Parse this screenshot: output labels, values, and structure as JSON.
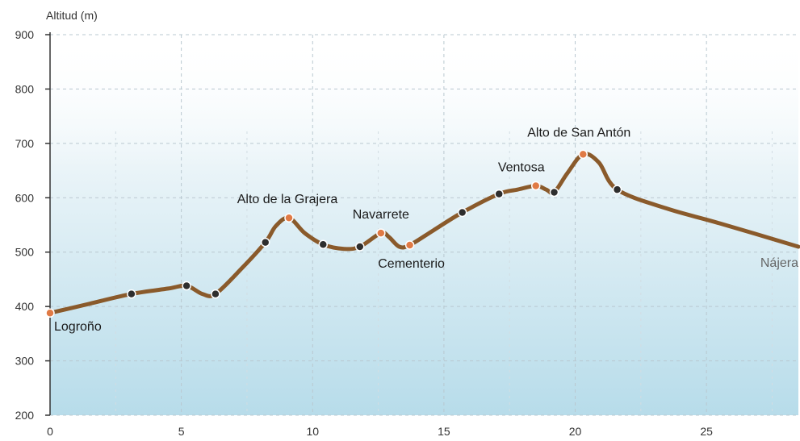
{
  "chart_data": {
    "type": "area",
    "ylabel": "Altitud (m)",
    "xlabel": "",
    "title": "",
    "xlim": [
      0,
      28.5
    ],
    "ylim": [
      200,
      900
    ],
    "y_ticks": [
      200,
      300,
      400,
      500,
      600,
      700,
      800,
      900
    ],
    "x_ticks": [
      0,
      5,
      10,
      15,
      20,
      25
    ],
    "grid": true,
    "line_color": "#8a5a2b",
    "fill_top_color": "#eaf4f8",
    "fill_bottom_color": "#b7dcea",
    "profile": [
      {
        "x": 0.0,
        "y": 388
      },
      {
        "x": 1.5,
        "y": 405
      },
      {
        "x": 3.1,
        "y": 423
      },
      {
        "x": 4.5,
        "y": 433
      },
      {
        "x": 5.2,
        "y": 438
      },
      {
        "x": 5.8,
        "y": 423
      },
      {
        "x": 6.3,
        "y": 423
      },
      {
        "x": 7.3,
        "y": 470
      },
      {
        "x": 8.2,
        "y": 518
      },
      {
        "x": 8.6,
        "y": 548
      },
      {
        "x": 9.1,
        "y": 563
      },
      {
        "x": 9.7,
        "y": 535
      },
      {
        "x": 10.4,
        "y": 514
      },
      {
        "x": 11.2,
        "y": 506
      },
      {
        "x": 11.8,
        "y": 510
      },
      {
        "x": 12.6,
        "y": 535
      },
      {
        "x": 12.9,
        "y": 528
      },
      {
        "x": 13.3,
        "y": 510
      },
      {
        "x": 13.7,
        "y": 513
      },
      {
        "x": 14.6,
        "y": 540
      },
      {
        "x": 15.7,
        "y": 573
      },
      {
        "x": 17.1,
        "y": 607
      },
      {
        "x": 17.8,
        "y": 615
      },
      {
        "x": 18.5,
        "y": 622
      },
      {
        "x": 18.9,
        "y": 615
      },
      {
        "x": 19.2,
        "y": 610
      },
      {
        "x": 19.7,
        "y": 645
      },
      {
        "x": 20.3,
        "y": 680
      },
      {
        "x": 20.9,
        "y": 665
      },
      {
        "x": 21.6,
        "y": 615
      },
      {
        "x": 23.5,
        "y": 580
      },
      {
        "x": 25.5,
        "y": 553
      },
      {
        "x": 28.5,
        "y": 510
      }
    ],
    "waypoints": [
      {
        "x": 0.0,
        "y": 388,
        "color": "orange",
        "label": "Logroño"
      },
      {
        "x": 3.1,
        "y": 423,
        "color": "dark",
        "label": ""
      },
      {
        "x": 5.2,
        "y": 438,
        "color": "dark",
        "label": ""
      },
      {
        "x": 6.3,
        "y": 423,
        "color": "dark",
        "label": ""
      },
      {
        "x": 8.2,
        "y": 518,
        "color": "dark",
        "label": ""
      },
      {
        "x": 9.1,
        "y": 563,
        "color": "orange",
        "label": "Alto de la Grajera"
      },
      {
        "x": 10.4,
        "y": 514,
        "color": "dark",
        "label": ""
      },
      {
        "x": 11.8,
        "y": 510,
        "color": "dark",
        "label": ""
      },
      {
        "x": 12.6,
        "y": 535,
        "color": "orange",
        "label": "Navarrete"
      },
      {
        "x": 13.7,
        "y": 513,
        "color": "orange",
        "label": "Cementerio"
      },
      {
        "x": 15.7,
        "y": 573,
        "color": "dark",
        "label": ""
      },
      {
        "x": 17.1,
        "y": 607,
        "color": "dark",
        "label": ""
      },
      {
        "x": 18.5,
        "y": 622,
        "color": "orange",
        "label": "Ventosa"
      },
      {
        "x": 19.2,
        "y": 610,
        "color": "dark",
        "label": ""
      },
      {
        "x": 20.3,
        "y": 680,
        "color": "orange",
        "label": "Alto de San Antón"
      },
      {
        "x": 21.6,
        "y": 615,
        "color": "dark",
        "label": ""
      }
    ],
    "end_label": "Nájera"
  }
}
